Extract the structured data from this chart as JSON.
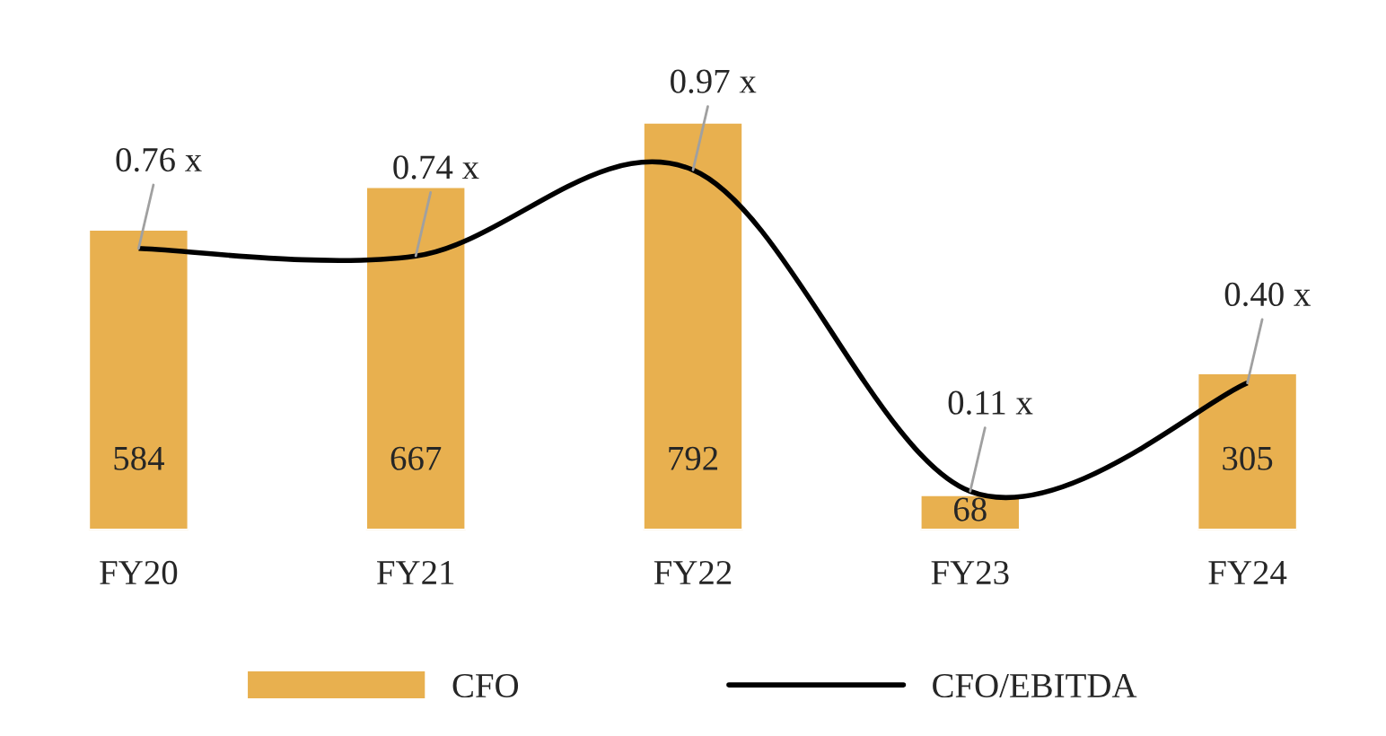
{
  "chart_data": {
    "type": "bar",
    "categories": [
      "FY20",
      "FY21",
      "FY22",
      "FY23",
      "FY24"
    ],
    "series": [
      {
        "name": "CFO",
        "color": "#e8b04f",
        "values": [
          584,
          667,
          792,
          68,
          305
        ]
      },
      {
        "name": "CFO/EBITDA",
        "type": "line",
        "axis": "y2",
        "color": "#000000",
        "values": [
          0.76,
          0.74,
          0.97,
          0.11,
          0.4
        ],
        "value_labels": [
          "0.76 x",
          "0.74 x",
          "0.97 x",
          "0.11 x",
          "0.40 x"
        ]
      }
    ],
    "data_labels": true,
    "tick_labels": "x",
    "grid": false,
    "legend": "bottom",
    "marker": "none",
    "line_style": "solid"
  }
}
